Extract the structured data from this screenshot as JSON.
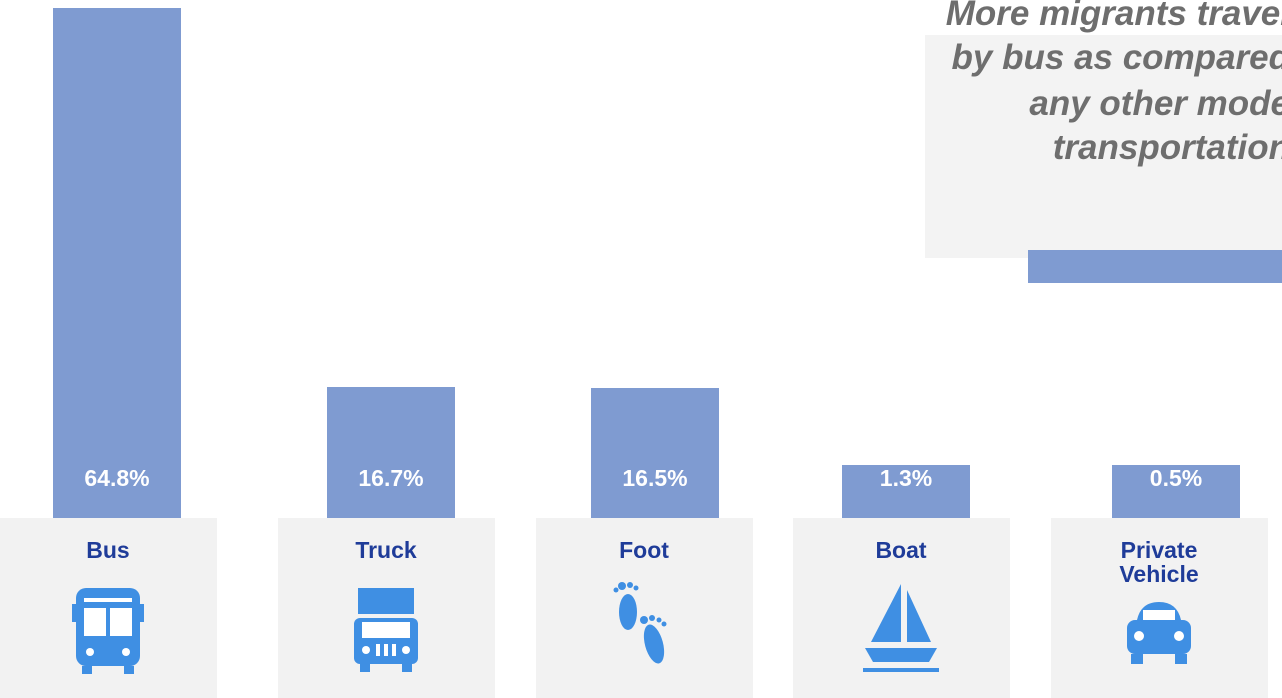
{
  "chart_data": {
    "type": "bar",
    "annotation": [
      "More migrants travel",
      "by bus as compared",
      "any other mode",
      "transportation"
    ],
    "categories": [
      "Bus",
      "Truck",
      "Foot",
      "Boat",
      "Private Vehicle"
    ],
    "values": [
      64.8,
      16.7,
      16.5,
      1.3,
      0.5
    ],
    "value_labels": [
      "64.8%",
      "16.7%",
      "16.5%",
      "1.3%",
      "0.5%"
    ],
    "color": "#7f9bd1"
  }
}
